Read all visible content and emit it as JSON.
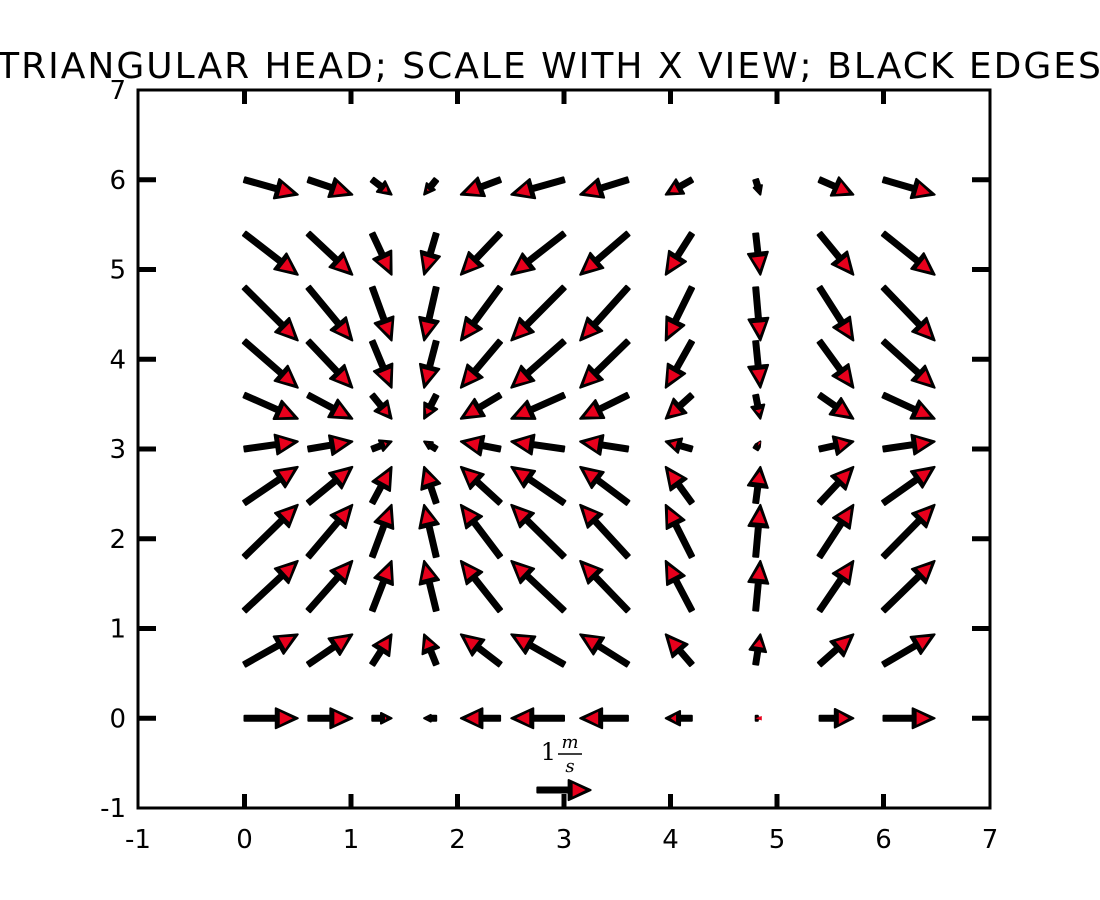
{
  "chart_data": {
    "type": "quiver",
    "title": "TRIANGULAR HEAD; SCALE WITH X VIEW; BLACK EDGES",
    "xlabel": "",
    "ylabel": "",
    "xlim": [
      -1,
      7
    ],
    "ylim": [
      -1,
      7
    ],
    "xticks": [
      -1,
      0,
      1,
      2,
      3,
      4,
      5,
      6,
      7
    ],
    "yticks": [
      -1,
      0,
      1,
      2,
      3,
      4,
      5,
      6,
      7
    ],
    "xtick_labels": [
      "-1",
      "0",
      "1",
      "2",
      "3",
      "4",
      "5",
      "6",
      "7"
    ],
    "ytick_labels": [
      "-1",
      "0",
      "1",
      "2",
      "3",
      "4",
      "5",
      "6",
      "7"
    ],
    "grid": false,
    "x": [
      0,
      0.6,
      1.2,
      1.8,
      2.4,
      3.0,
      3.6,
      4.2,
      4.8,
      5.4,
      6.0
    ],
    "y": [
      0,
      0.6,
      1.2,
      1.8,
      2.4,
      3.0,
      3.6,
      4.2,
      4.8,
      5.4,
      6.0
    ],
    "u_formula": "cos(x)",
    "v_formula": "sin(y)",
    "arrow_scale_units_per_ms": 0.5,
    "quiverkey": {
      "x": 3,
      "y": -0.8,
      "value": 1,
      "label_base": "1",
      "label_num": "m",
      "label_den": "s"
    },
    "colors": {
      "arrow_face": "#e8001c",
      "arrow_edge": "#000000",
      "frame": "#000000",
      "background": "#ffffff"
    }
  }
}
